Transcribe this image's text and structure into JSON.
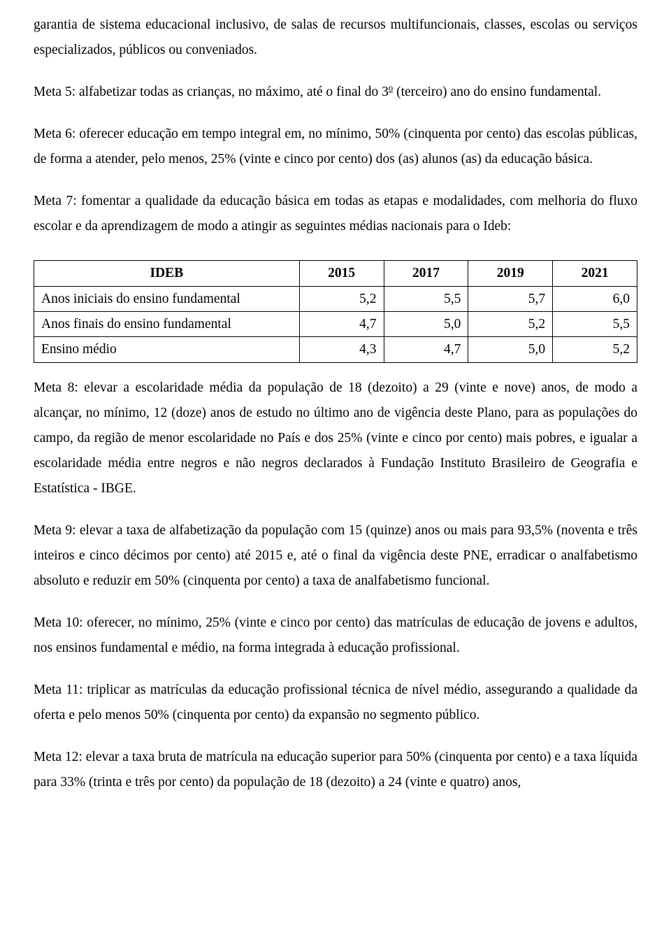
{
  "paragraphs": {
    "p0": "garantia de sistema educacional inclusivo, de salas de recursos multifuncionais, classes, escolas ou serviços especializados, públicos ou conveniados.",
    "p1_part1": "Meta 5: alfabetizar todas as crianças, no máximo, até o final do 3",
    "p1_sup": "o",
    "p1_part2": " (terceiro) ano do ensino fundamental.",
    "p2": "Meta 6: oferecer educação em tempo integral em, no mínimo, 50% (cinquenta por cento) das escolas públicas, de forma a atender, pelo menos, 25% (vinte e cinco por cento) dos (as) alunos (as) da educação básica.",
    "p3": "Meta 7: fomentar a qualidade da educação básica em todas as etapas e modalidades, com melhoria do fluxo escolar e da aprendizagem de modo a atingir as seguintes médias nacionais para o Ideb:",
    "p4": "Meta 8: elevar a escolaridade média da população de 18 (dezoito) a 29 (vinte e nove) anos, de modo a alcançar, no mínimo, 12 (doze) anos de estudo no último ano de vigência deste Plano, para as populações do campo, da região de menor escolaridade no País e dos 25% (vinte e cinco por cento) mais pobres, e igualar a escolaridade média entre negros e não negros declarados à Fundação Instituto Brasileiro de Geografia e Estatística - IBGE.",
    "p5": "Meta 9: elevar a taxa de alfabetização da população com 15 (quinze) anos ou mais para 93,5% (noventa e três inteiros e cinco décimos por cento) até 2015 e, até o final da vigência deste PNE, erradicar o analfabetismo absoluto e reduzir em 50% (cinquenta por cento) a taxa de analfabetismo funcional.",
    "p6": "Meta 10: oferecer, no mínimo, 25% (vinte e cinco por cento) das matrículas de educação de jovens e adultos, nos ensinos fundamental e médio, na forma integrada à educação profissional.",
    "p7": "Meta 11: triplicar as matrículas da educação profissional técnica de nível médio, assegurando a qualidade da oferta e pelo menos 50% (cinquenta por cento) da expansão no segmento público.",
    "p8": "Meta 12: elevar a taxa bruta de matrícula na educação superior para 50% (cinquenta por cento) e a taxa líquida para 33% (trinta e três por cento) da população de 18 (dezoito) a 24 (vinte e quatro) anos,"
  },
  "table": {
    "type": "table",
    "border_color": "#000000",
    "background_color": "#ffffff",
    "font_family": "Times New Roman",
    "header_font_weight": "bold",
    "columns": [
      "IDEB",
      "2015",
      "2017",
      "2019",
      "2021"
    ],
    "column_widths_pct": [
      44,
      14,
      14,
      14,
      14
    ],
    "rows": [
      {
        "label": "Anos iniciais do ensino fundamental",
        "values": [
          "5,2",
          "5,5",
          "5,7",
          "6,0"
        ]
      },
      {
        "label": "Anos finais do ensino fundamental",
        "values": [
          "4,7",
          "5,0",
          "5,2",
          "5,5"
        ]
      },
      {
        "label": "Ensino médio",
        "values": [
          "4,3",
          "4,7",
          "5,0",
          "5,2"
        ]
      }
    ]
  }
}
